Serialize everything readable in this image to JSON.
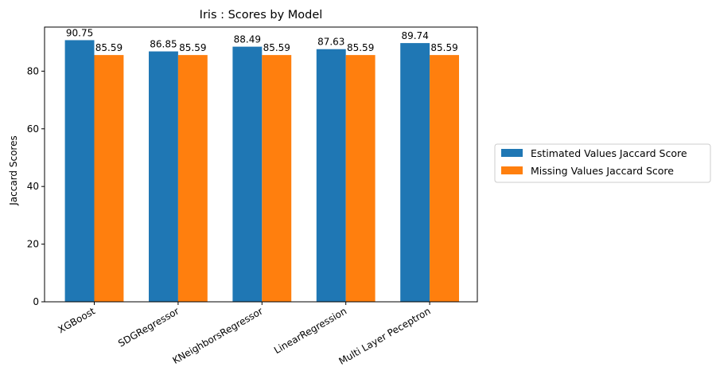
{
  "chart_data": {
    "type": "bar",
    "title": "Iris : Scores by Model",
    "xlabel": "",
    "ylabel": "Jaccard Scores",
    "ylim": [
      0,
      95.29
    ],
    "yticks": [
      0,
      20,
      40,
      60,
      80
    ],
    "categories": [
      "XGBoost",
      "SDGRegressor",
      "KNeighborsRegressor",
      "LinearRegression",
      "Multi Layer Peceptron"
    ],
    "series": [
      {
        "name": "Estimated Values Jaccard Score",
        "color": "#1f77b4",
        "values": [
          90.75,
          86.85,
          88.49,
          87.63,
          89.74
        ],
        "labels": [
          "90.75",
          "86.85",
          "88.49",
          "87.63",
          "89.74"
        ]
      },
      {
        "name": "Missing Values Jaccard Score",
        "color": "#ff7f0e",
        "values": [
          85.59,
          85.59,
          85.59,
          85.59,
          85.59
        ],
        "labels": [
          "85.59",
          "85.59",
          "85.59",
          "85.59",
          "85.59"
        ]
      }
    ],
    "grid": false,
    "legend_position": "right"
  }
}
